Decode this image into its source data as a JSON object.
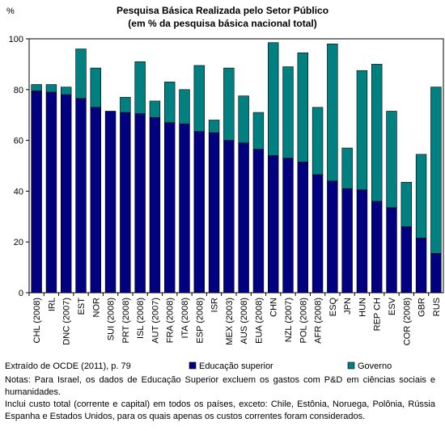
{
  "chart_data": {
    "type": "stacked-bar",
    "title": "Pesquisa Básica Realizada pelo Setor Público",
    "subtitle": "(em % da pesquisa básica nacional total)",
    "y_label": "%",
    "categories": [
      "CHL (2008)",
      "IRL",
      "DNC (2007)",
      "EST",
      "NOR",
      "SUI (2008)",
      "PRT (2008)",
      "ISL (2008)",
      "AUT (2007)",
      "FRA (2008)",
      "ITA (2008)",
      "ESP (2008)",
      "ISR",
      "MEX (2003)",
      "AUS (2008)",
      "EUA (2008)",
      "CHN",
      "NZL (2007)",
      "POL (2008)",
      "AFR (2008)",
      "ESQ",
      "JPN",
      "HUN",
      "REP CH",
      "ESV",
      "COR (2008)",
      "GBR",
      "RUS"
    ],
    "series": [
      {
        "name": "Educação superior",
        "color": "#000080",
        "values": [
          79.5,
          79,
          78,
          76.5,
          73,
          71.5,
          71,
          70.5,
          69,
          67,
          66.5,
          63.5,
          63,
          60,
          59,
          56.5,
          54,
          53,
          51.5,
          46.5,
          44,
          41,
          40.5,
          36,
          33.5,
          26,
          21.5,
          15.5
        ]
      },
      {
        "name": "Governo",
        "color": "#008080",
        "values": [
          2.5,
          3,
          3,
          19.5,
          15.5,
          0,
          6,
          20.5,
          6.5,
          16,
          13.5,
          26,
          5,
          28.5,
          18.5,
          14.5,
          44.5,
          36,
          43,
          26.5,
          54,
          16,
          47,
          54,
          38,
          17.5,
          33,
          65.5
        ]
      }
    ],
    "ylim": [
      0,
      100
    ],
    "yticks": [
      0,
      20,
      40,
      60,
      80,
      100
    ],
    "grid": false
  },
  "footer": {
    "source": "Extraído de OCDE (2011), p. 79",
    "notes": [
      "Notas: Para Israel, os dados de Educação Superior excluem os gastos com P&D em ciências sociais e humanidades.",
      "Inclui custo total (corrente e capital) em todos os países, exceto: Chile, Estônia, Noruega, Polônia, Rússia Espanha e Estados Unidos, para os quais apenas os custos correntes foram considerados."
    ]
  }
}
